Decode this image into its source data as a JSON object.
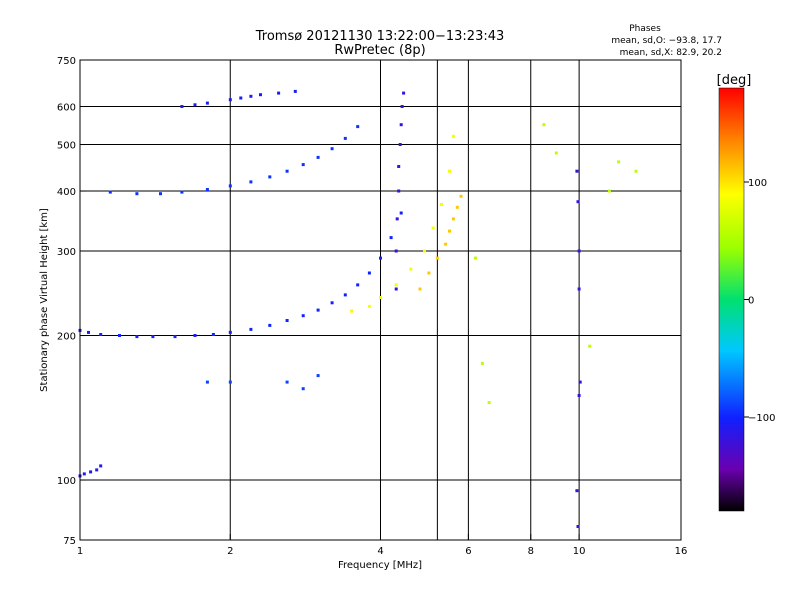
{
  "chart_data": {
    "type": "scatter",
    "title_line1": "Tromsø 20121130 13:22:00−13:23:43",
    "title_line2": "RwPretec (8p)",
    "stats_title": "Phases",
    "stats_line1": "mean, sd,O: −93.8, 17.7",
    "stats_line2": "mean, sd,X:  82.9, 20.2",
    "xlabel": "Frequency [MHz]",
    "ylabel": "Stationary phase Virtual Height [km]",
    "x_scale": "log",
    "y_scale": "log",
    "xlim": [
      1,
      16
    ],
    "ylim": [
      75,
      750
    ],
    "x_ticks": [
      1,
      2,
      4,
      6,
      8,
      10,
      16
    ],
    "x_tick_labels": [
      "1",
      "2",
      "4",
      "6",
      "8",
      "10",
      "16"
    ],
    "y_ticks": [
      75,
      100,
      200,
      300,
      400,
      500,
      600,
      750
    ],
    "y_tick_labels": [
      "75",
      "100",
      "200",
      "300",
      "400",
      "500",
      "600",
      "750"
    ],
    "grid": true,
    "grid_x": [
      2,
      4,
      5.2,
      6,
      8,
      10
    ],
    "grid_y": [
      100,
      200,
      300,
      400,
      500,
      600
    ],
    "colorbar": {
      "label": "[deg]",
      "range": [
        -180,
        180
      ],
      "tick_values": [
        100,
        0,
        -100
      ],
      "tick_labels": [
        "100",
        "0",
        "−100"
      ]
    },
    "series": [
      {
        "phase": -100,
        "x": [
          1.0,
          1.04,
          1.1,
          1.2,
          1.3,
          1.4,
          1.55,
          1.7,
          1.85,
          2.0,
          2.2,
          2.4,
          2.6,
          2.8,
          3.0,
          3.2,
          3.4,
          3.6,
          3.8,
          4.0,
          4.2,
          4.4
        ],
        "y": [
          205,
          203,
          201,
          200,
          199,
          199,
          199,
          200,
          201,
          203,
          206,
          210,
          215,
          220,
          226,
          234,
          243,
          255,
          270,
          290,
          320,
          360
        ]
      },
      {
        "phase": -95,
        "x": [
          1.15,
          1.3,
          1.45,
          1.6,
          1.8,
          2.0,
          2.2,
          2.4,
          2.6,
          2.8,
          3.0,
          3.2,
          3.4,
          3.6
        ],
        "y": [
          398,
          395,
          395,
          398,
          403,
          410,
          418,
          428,
          440,
          454,
          470,
          490,
          515,
          545
        ]
      },
      {
        "phase": -115,
        "x": [
          4.3,
          4.3,
          4.32,
          4.35,
          4.35,
          4.38,
          4.4,
          4.42,
          4.45
        ],
        "y": [
          250,
          300,
          350,
          400,
          450,
          500,
          550,
          600,
          640
        ]
      },
      {
        "phase": 85,
        "x": [
          3.5,
          3.8,
          4.0,
          4.3,
          4.6,
          4.9,
          5.1,
          5.3,
          5.5,
          5.6
        ],
        "y": [
          225,
          230,
          240,
          255,
          275,
          300,
          335,
          375,
          440,
          520
        ]
      },
      {
        "phase": 110,
        "x": [
          4.8,
          5.0,
          5.2,
          5.4,
          5.5,
          5.6,
          5.7,
          5.8
        ],
        "y": [
          250,
          270,
          290,
          310,
          330,
          350,
          370,
          390
        ]
      },
      {
        "phase": -110,
        "x": [
          1.0,
          1.02,
          1.05,
          1.08,
          1.1
        ],
        "y": [
          102,
          103,
          104,
          105,
          107
        ]
      },
      {
        "phase": -105,
        "x": [
          1.6,
          1.7,
          1.8,
          2.0,
          2.1,
          2.2,
          2.3,
          2.5,
          2.7
        ],
        "y": [
          600,
          605,
          610,
          620,
          625,
          630,
          635,
          640,
          645
        ]
      },
      {
        "phase": -120,
        "x": [
          9.9,
          9.95,
          10.0,
          10.0,
          10.05,
          10.0,
          9.9,
          9.95
        ],
        "y": [
          440,
          380,
          300,
          250,
          160,
          150,
          95,
          80
        ]
      },
      {
        "phase": 60,
        "x": [
          6.2,
          6.4,
          6.6,
          8.5,
          9.0,
          10.5,
          11.5,
          12.0,
          13.0
        ],
        "y": [
          290,
          175,
          145,
          550,
          480,
          190,
          400,
          460,
          440
        ]
      },
      {
        "phase": -90,
        "x": [
          1.8,
          2.0,
          2.6,
          2.8,
          3.0
        ],
        "y": [
          160,
          160,
          160,
          155,
          165
        ]
      }
    ]
  }
}
